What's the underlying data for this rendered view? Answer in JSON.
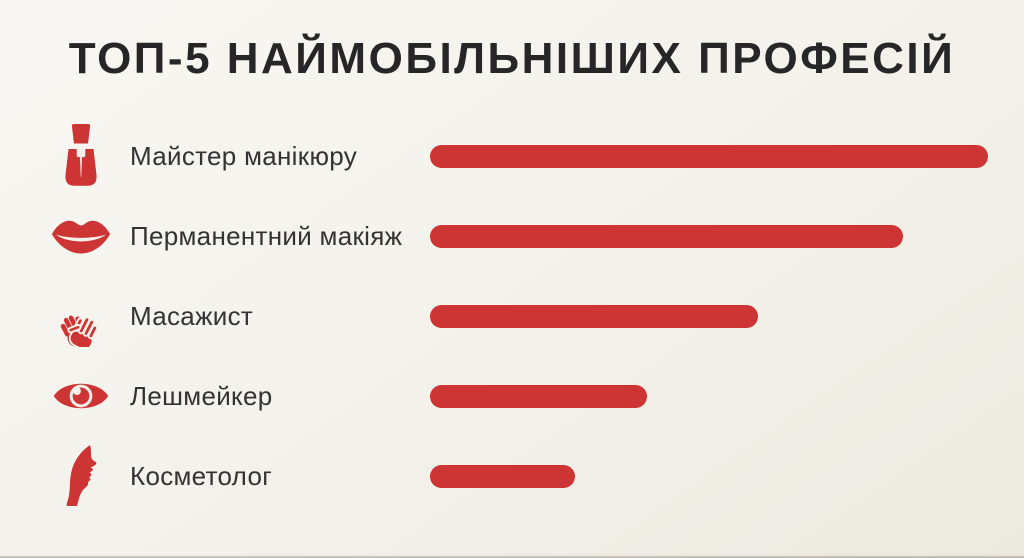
{
  "title": "ТОП-5 НАЙМОБІЛЬНІШИХ ПРОФЕСІЙ",
  "colors": {
    "background": "#f3f1ea",
    "accent_red": "#cd3434",
    "title_text": "#262626",
    "label_text": "#333333"
  },
  "chart_data": {
    "type": "bar",
    "orientation": "horizontal",
    "title": "ТОП-5 НАЙМОБІЛЬНІШИХ ПРОФЕСІЙ",
    "categories": [
      "Майстер манікюру",
      "Перманентний макіяж",
      "Масажист",
      "Лешмейкер",
      "Косметолог"
    ],
    "values": [
      558,
      473,
      328,
      217,
      145
    ],
    "value_note": "relative bar lengths in px; no numeric labels shown in image",
    "max_value": 558,
    "bar_color": "#cd3434",
    "icons": [
      "nail-polish-icon",
      "lips-icon",
      "massage-hands-icon",
      "eye-icon",
      "face-profile-icon"
    ],
    "legend": "none",
    "grid": false,
    "axis_labels": "none"
  }
}
